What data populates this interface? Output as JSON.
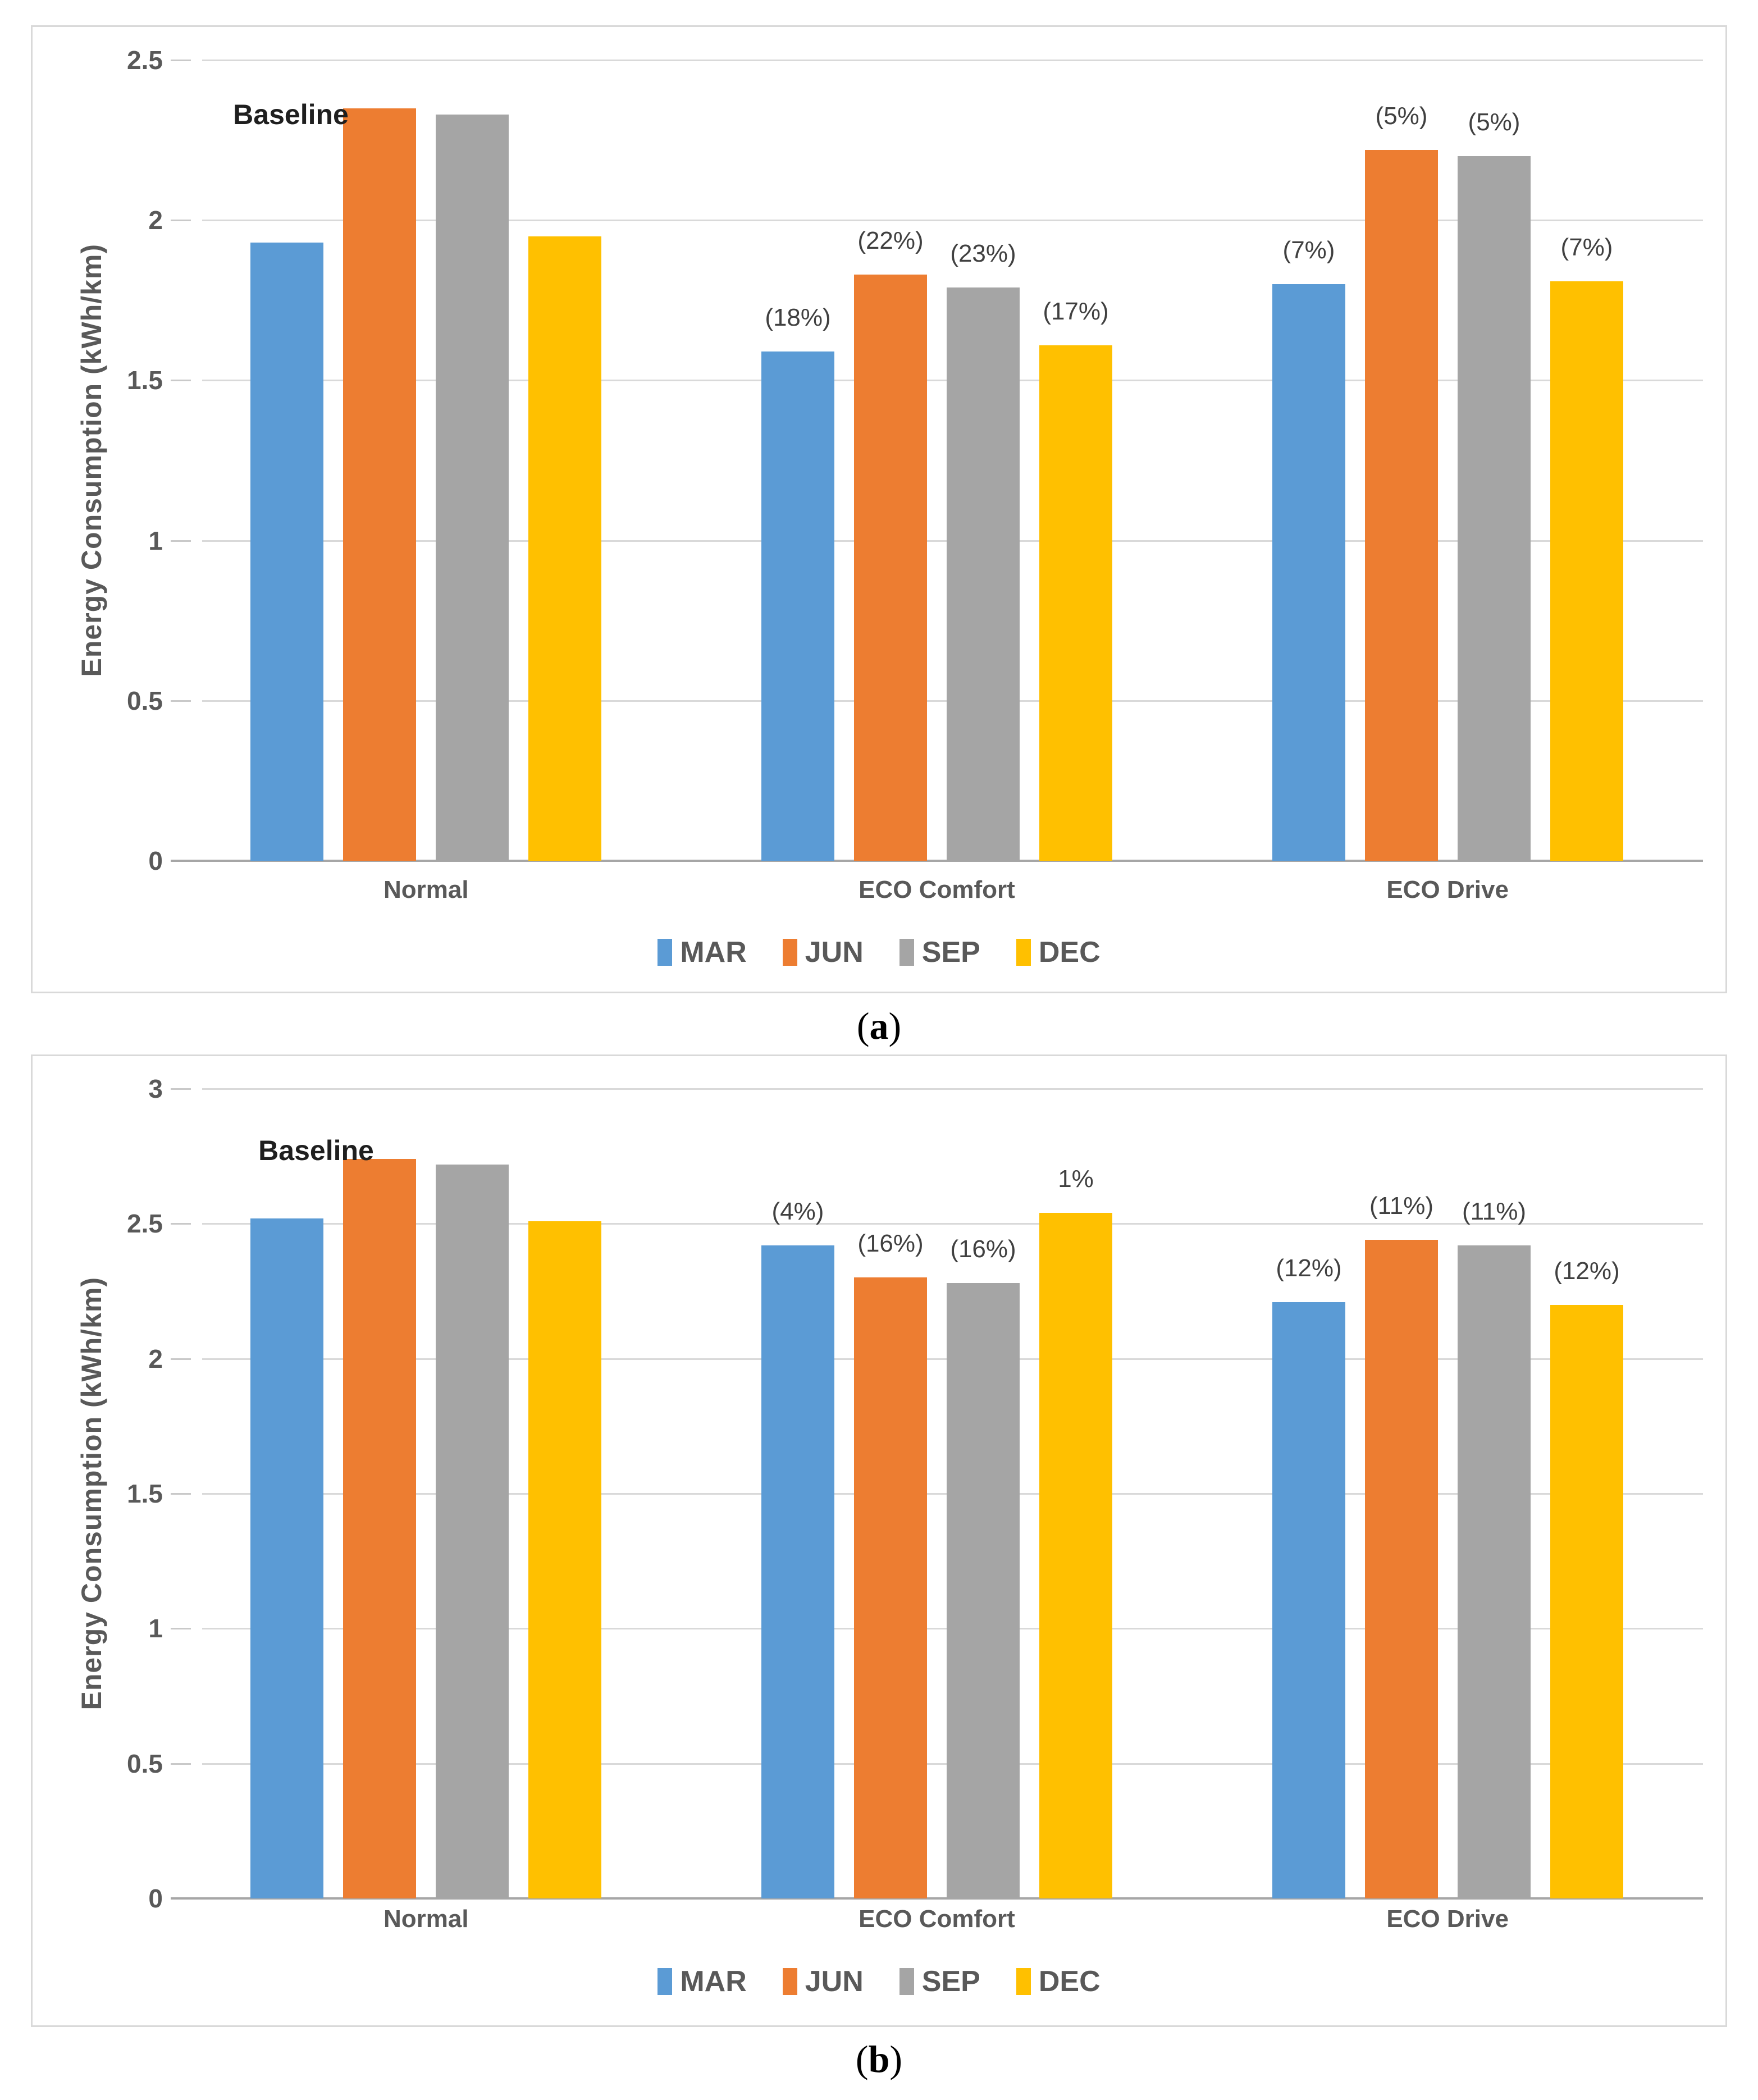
{
  "captions": [
    {
      "open": "(",
      "letter": "a",
      "close": ")"
    },
    {
      "open": "(",
      "letter": "b",
      "close": ")"
    }
  ],
  "colors": {
    "mar_blue": "#5B9BD5",
    "jun_orange": "#ED7D31",
    "sep_gray": "#A5A5A5",
    "dec_yellow": "#FFC000",
    "gridline": "#D9D9D9",
    "axis_line": "#A6A6A6",
    "tick_text": "#595959",
    "annotation_text": "#404040",
    "baseline_text": "#1F1F1F",
    "panel_border": "#D9D9D9"
  },
  "chart_data": [
    {
      "type": "bar",
      "title": "",
      "annotation": "Baseline",
      "xlabel": "",
      "ylabel": "Energy Consumption (kWh/km)",
      "ylim": [
        0,
        2.5
      ],
      "ytick_step": 0.5,
      "ytick_labels_top_to_bottom": [
        "2.5",
        "2",
        "1.5",
        "1",
        "0.5",
        "0"
      ],
      "grid": "horizontal",
      "legend_position": "bottom",
      "categories": [
        "Normal",
        "ECO Comfort",
        "ECO Drive"
      ],
      "series": [
        {
          "name": "MAR",
          "color": "#5B9BD5",
          "values": [
            1.93,
            1.59,
            1.8
          ]
        },
        {
          "name": "JUN",
          "color": "#ED7D31",
          "values": [
            2.35,
            1.83,
            2.22
          ]
        },
        {
          "name": "SEP",
          "color": "#A5A5A5",
          "values": [
            2.33,
            1.79,
            2.2
          ]
        },
        {
          "name": "DEC",
          "color": "#FFC000",
          "values": [
            1.95,
            1.61,
            1.81
          ]
        }
      ],
      "bar_labels": [
        [
          "",
          "",
          "",
          ""
        ],
        [
          "(18%)",
          "(22%)",
          "(23%)",
          "(17%)"
        ],
        [
          "(7%)",
          "(5%)",
          "(5%)",
          "(7%)"
        ]
      ]
    },
    {
      "type": "bar",
      "title": "",
      "annotation": "Baseline",
      "xlabel": "",
      "ylabel": "Energy Consumption (kWh/km)",
      "ylim": [
        0,
        3
      ],
      "ytick_step": 0.5,
      "ytick_labels_top_to_bottom": [
        "3",
        "2.5",
        "2",
        "1.5",
        "1",
        "0.5",
        "0"
      ],
      "grid": "horizontal",
      "legend_position": "bottom",
      "categories": [
        "Normal",
        "ECO Comfort",
        "ECO Drive"
      ],
      "series": [
        {
          "name": "MAR",
          "color": "#5B9BD5",
          "values": [
            2.52,
            2.42,
            2.21
          ]
        },
        {
          "name": "JUN",
          "color": "#ED7D31",
          "values": [
            2.74,
            2.3,
            2.44
          ]
        },
        {
          "name": "SEP",
          "color": "#A5A5A5",
          "values": [
            2.72,
            2.28,
            2.42
          ]
        },
        {
          "name": "DEC",
          "color": "#FFC000",
          "values": [
            2.51,
            2.54,
            2.2
          ]
        }
      ],
      "bar_labels": [
        [
          "",
          "",
          "",
          ""
        ],
        [
          "(4%)",
          "(16%)",
          "(16%)",
          "1%"
        ],
        [
          "(12%)",
          "(11%)",
          "(11%)",
          "(12%)"
        ]
      ]
    }
  ]
}
